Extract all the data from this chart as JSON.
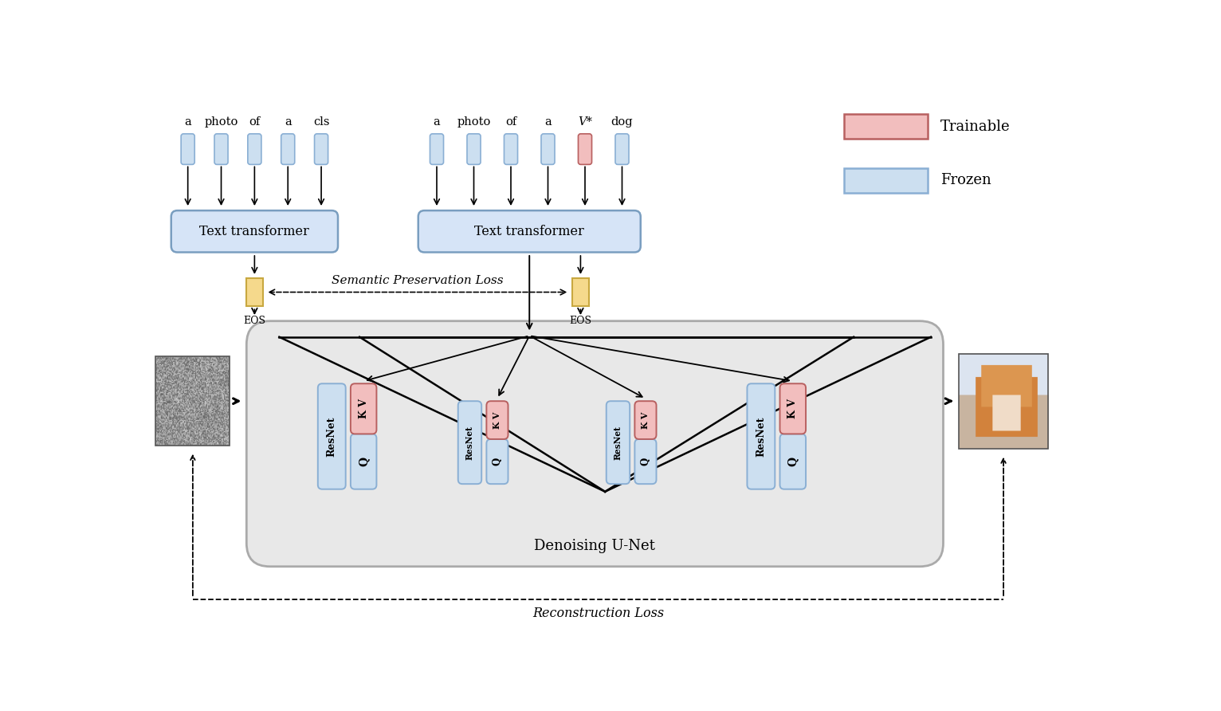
{
  "bg_color": "#ffffff",
  "frozen_color": "#ccdff0",
  "frozen_edge": "#8aafd4",
  "trainable_color": "#f2bebe",
  "trainable_edge": "#b86060",
  "eos_color": "#f5d98c",
  "eos_edge": "#c8a840",
  "transformer_color": "#d6e4f7",
  "transformer_edge": "#7a9ec0",
  "unet_bg": "#e8e8e8",
  "unet_edge": "#aaaaaa",
  "left_tokens": [
    "a",
    "photo",
    "of",
    "a",
    "cls"
  ],
  "right_tokens": [
    "a",
    "photo",
    "of",
    "a",
    "V*",
    "dog"
  ],
  "semantic_loss_text": "Semantic Preservation Loss",
  "reconstruction_loss_text": "Reconstruction Loss",
  "denoising_unet_text": "Denoising U-Net"
}
